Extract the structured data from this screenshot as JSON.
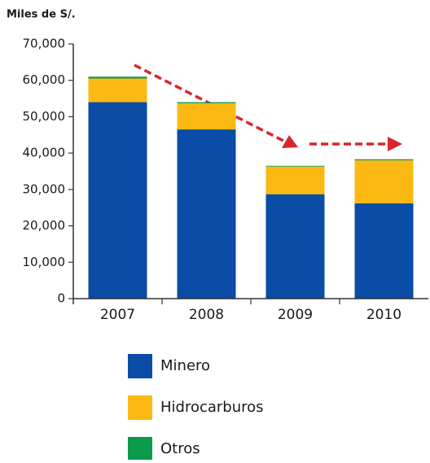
{
  "chart_data": {
    "type": "stacked_bar",
    "title": "Miles de S/.",
    "categories": [
      "2007",
      "2008",
      "2009",
      "2010"
    ],
    "series": [
      {
        "name": "Minero",
        "color": "#0a4ca6",
        "values": [
          54000,
          46500,
          28700,
          26200
        ]
      },
      {
        "name": "Hidrocarburos",
        "color": "#fdb913",
        "values": [
          6500,
          7200,
          7600,
          11800
        ]
      },
      {
        "name": "Otros",
        "color": "#0a9a4a",
        "values": [
          500,
          300,
          200,
          300
        ]
      }
    ],
    "ylim": [
      0,
      70000
    ],
    "yticks": [
      {
        "value": 0,
        "label": "0"
      },
      {
        "value": 10000,
        "label": "10,000"
      },
      {
        "value": 20000,
        "label": "20,000"
      },
      {
        "value": 30000,
        "label": "30,000"
      },
      {
        "value": 40000,
        "label": "40,000"
      },
      {
        "value": 50000,
        "label": "50,000"
      },
      {
        "value": 60000,
        "label": "60,000"
      },
      {
        "value": 70000,
        "label": "70,000"
      }
    ],
    "legend": "bottom"
  }
}
